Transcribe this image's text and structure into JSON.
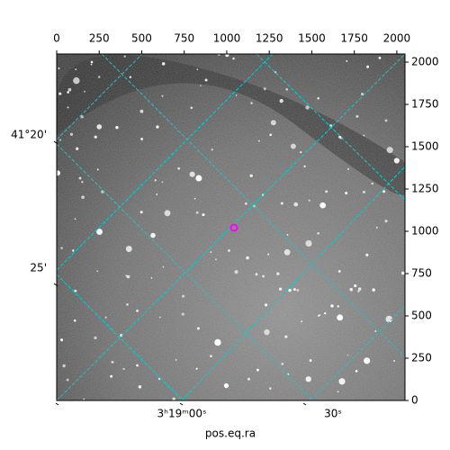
{
  "chart_data": {
    "type": "image",
    "xlabel": "pos.eq.ra",
    "xlim": [
      0,
      2048
    ],
    "ylim": [
      0,
      2048
    ],
    "xticks": [
      0,
      250,
      500,
      750,
      1000,
      1250,
      1500,
      1750,
      2000
    ],
    "yticks": [
      0,
      250,
      500,
      750,
      1000,
      1250,
      1500,
      1750,
      2000
    ],
    "ra_ticks": [
      "3ʰ19ᵐ00ˢ",
      "30ˢ"
    ],
    "dec_ticks": [
      "41°20'",
      "25'"
    ],
    "grid_color": "#00d0d0",
    "marker_color": "#ff00ff"
  }
}
